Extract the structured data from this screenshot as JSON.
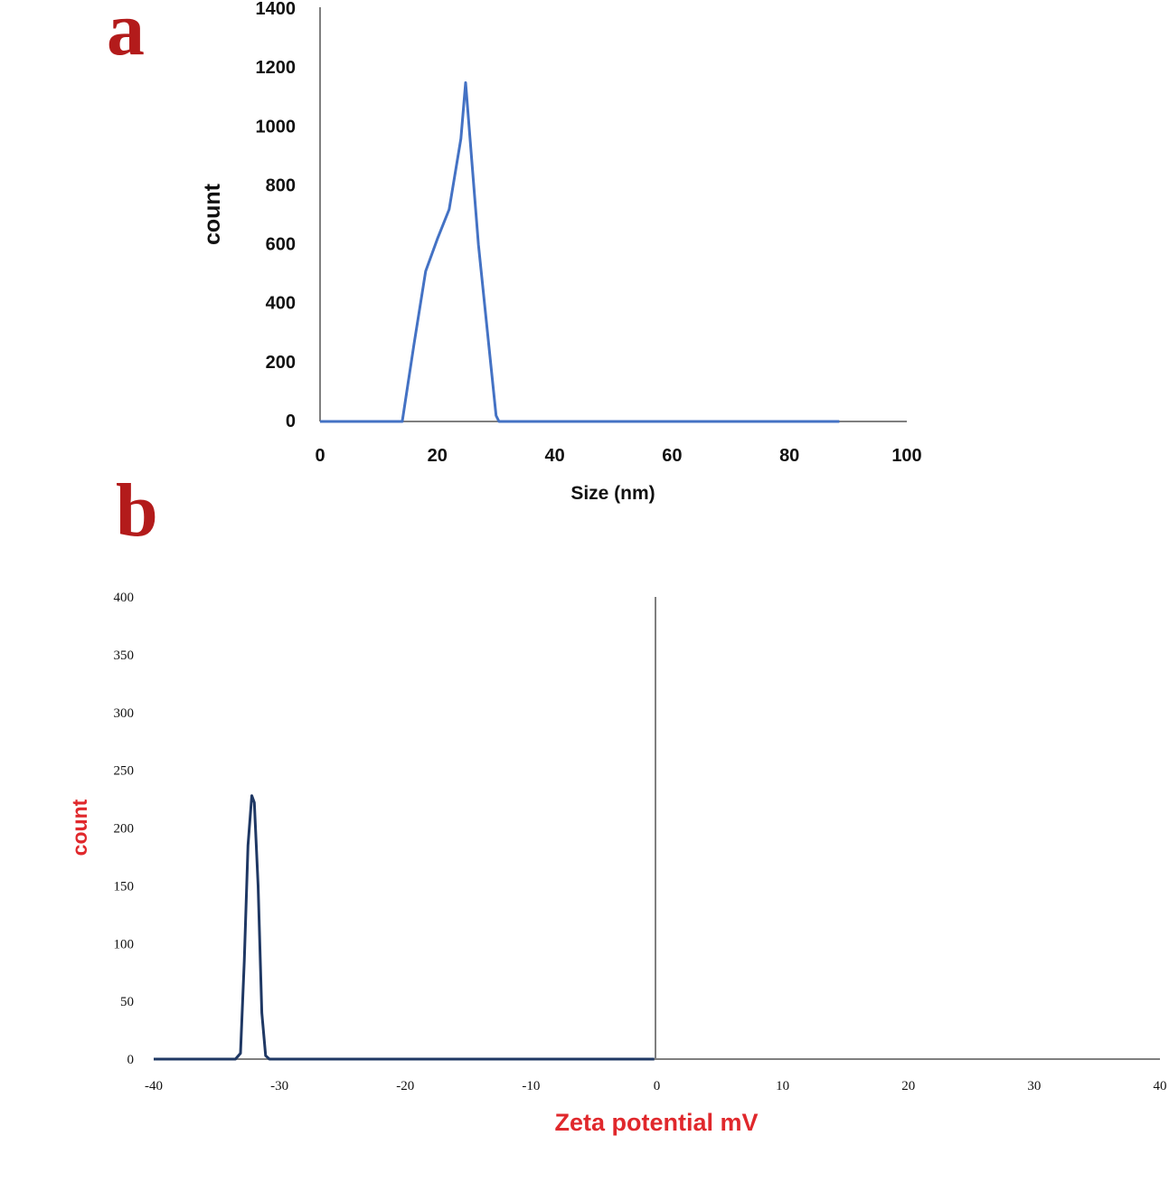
{
  "colors": {
    "panel_letter": "#b31b1b",
    "series_a": "#4472c4",
    "series_b": "#1f3864",
    "axis": "#7f7f7f",
    "axis_title_b": "#e0282c"
  },
  "chart_data": [
    {
      "panel": "a",
      "type": "line",
      "title": "",
      "xlabel": "Size (nm)",
      "ylabel": "count",
      "xlim": [
        0,
        100
      ],
      "ylim": [
        0,
        1400
      ],
      "x_ticks": [
        0,
        20,
        40,
        60,
        80,
        100
      ],
      "y_ticks": [
        0,
        200,
        400,
        600,
        800,
        1000,
        1200,
        1400
      ],
      "grid": false,
      "series": [
        {
          "x": [
            0,
            14,
            16,
            18,
            20,
            22,
            24,
            24.8,
            27,
            30,
            30.5,
            88.5
          ],
          "y": [
            0,
            0,
            260,
            510,
            620,
            720,
            960,
            1150,
            600,
            20,
            0,
            0
          ]
        }
      ]
    },
    {
      "panel": "b",
      "type": "line",
      "title": "",
      "xlabel": "Zeta potential mV",
      "ylabel": "count",
      "xlim": [
        -40,
        40
      ],
      "ylim": [
        0,
        400
      ],
      "x_ticks": [
        -40,
        -30,
        -20,
        -10,
        0,
        10,
        20,
        30,
        40
      ],
      "y_ticks": [
        0,
        50,
        100,
        150,
        200,
        250,
        300,
        350,
        400
      ],
      "grid": false,
      "series": [
        {
          "x": [
            -40,
            -33.5,
            -33.1,
            -32.8,
            -32.5,
            -32.2,
            -32.0,
            -31.7,
            -31.4,
            -31.1,
            -30.8,
            -0.2
          ],
          "y": [
            0,
            0,
            5,
            85,
            185,
            228,
            222,
            150,
            40,
            3,
            0,
            0
          ]
        }
      ]
    }
  ]
}
